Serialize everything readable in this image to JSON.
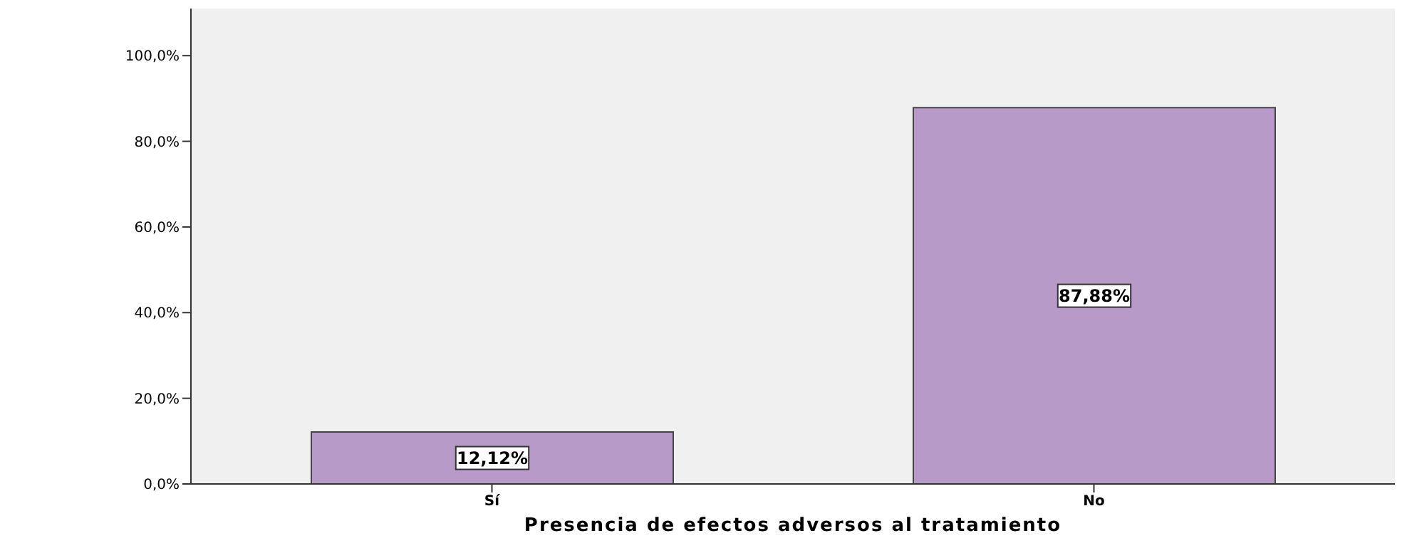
{
  "chart_data": {
    "type": "bar",
    "xlabel": "Presencia de efectos adversos al tratamiento",
    "categories": [
      "Sí",
      "No"
    ],
    "series": [
      {
        "color": "#b89ac8",
        "values": [
          12.12,
          87.88
        ],
        "value_labels": [
          "12,12%",
          "87,88%"
        ]
      }
    ],
    "ylim": [
      0,
      111
    ],
    "yticks": [
      {
        "value": 0,
        "label": "0,0%"
      },
      {
        "value": 20,
        "label": "20,0%"
      },
      {
        "value": 40,
        "label": "40,0%"
      },
      {
        "value": 60,
        "label": "60,0%"
      },
      {
        "value": 80,
        "label": "80,0%"
      },
      {
        "value": 100,
        "label": "100,0%"
      }
    ],
    "grid": false,
    "legend": false
  }
}
